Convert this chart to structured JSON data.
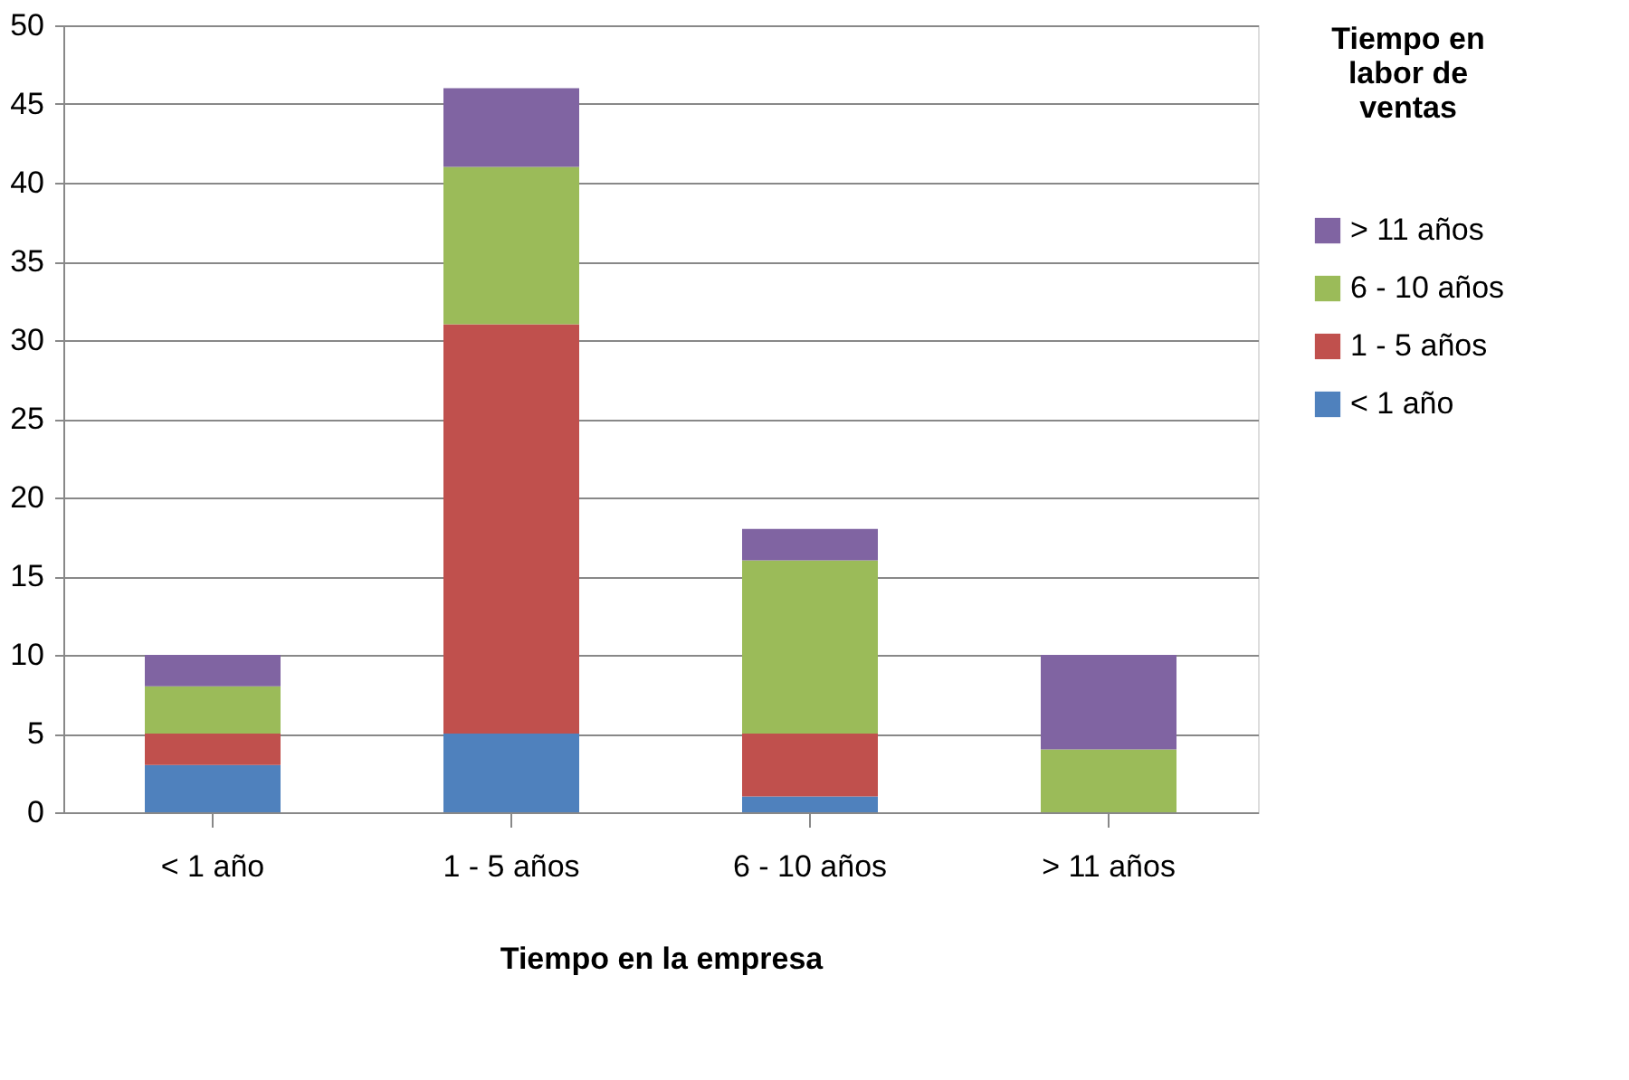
{
  "chart_data": {
    "type": "bar",
    "stacked": true,
    "xlabel": "Tiempo en la empresa",
    "legend_title": "Tiempo en labor de ventas",
    "categories": [
      "< 1 año",
      "1 - 5 años",
      "6 - 10 años",
      "> 11 años"
    ],
    "series": [
      {
        "name": "< 1 año",
        "color": "#4f81bd",
        "values": [
          3,
          5,
          1,
          0
        ]
      },
      {
        "name": "1 - 5 años",
        "color": "#c0504d",
        "values": [
          2,
          26,
          4,
          0
        ]
      },
      {
        "name": "6 - 10 años",
        "color": "#9bbb59",
        "values": [
          3,
          10,
          11,
          4
        ]
      },
      {
        "name": "> 11 años",
        "color": "#8064a2",
        "values": [
          2,
          5,
          2,
          6
        ]
      }
    ],
    "ylim": [
      0,
      50
    ],
    "yticks": [
      0,
      5,
      10,
      15,
      20,
      25,
      30,
      35,
      40,
      45,
      50
    ],
    "grid": "y",
    "legend": "right"
  }
}
